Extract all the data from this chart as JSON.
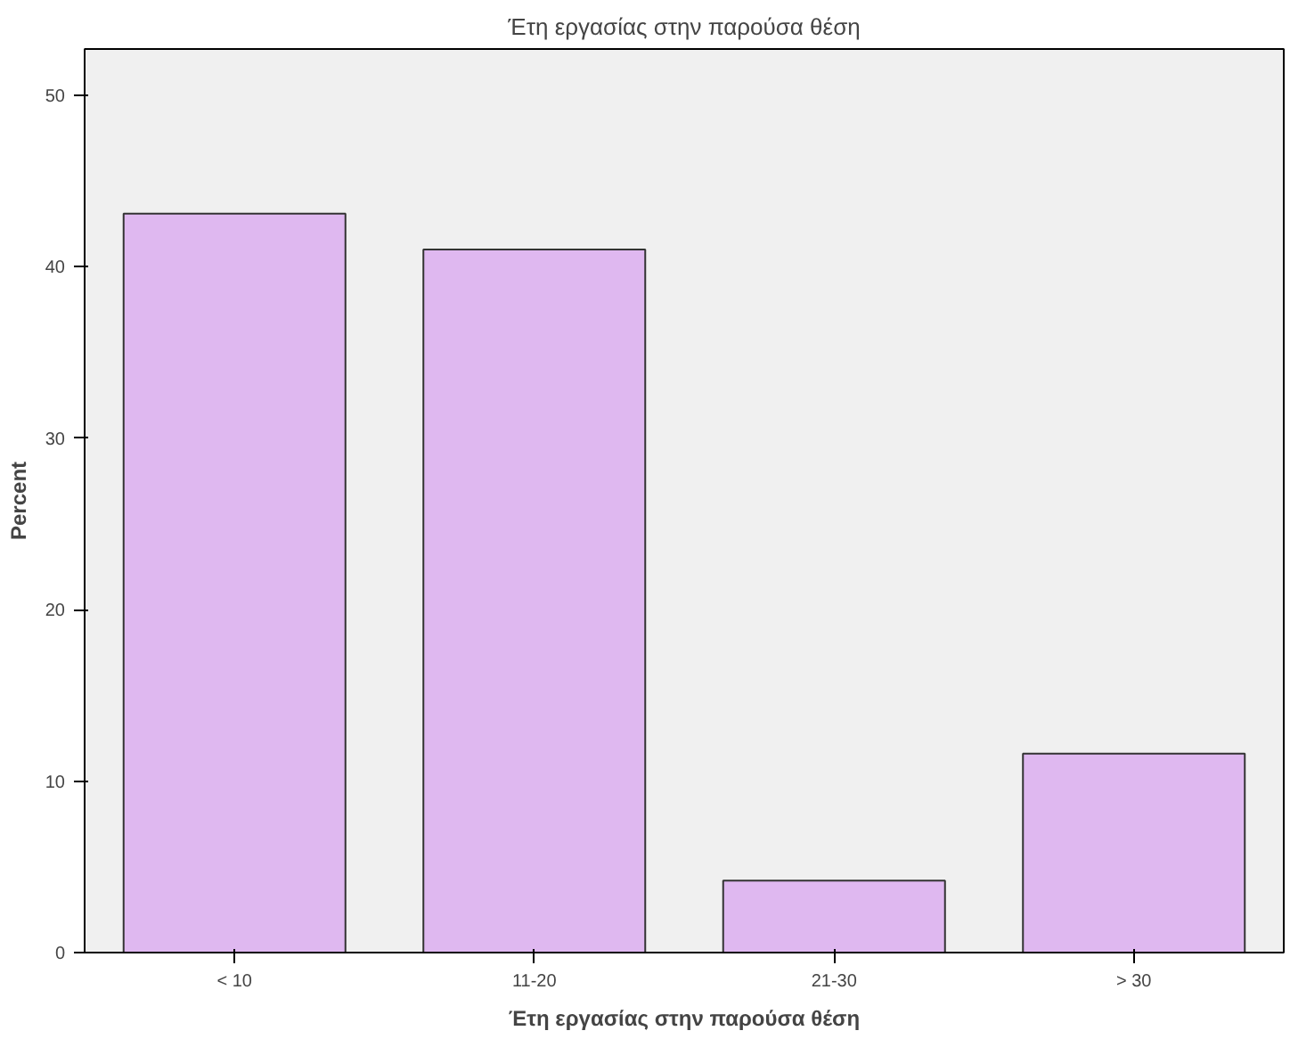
{
  "chart_data": {
    "type": "bar",
    "title": "Έτη εργασίας στην παρούσα θέση",
    "xlabel": "Έτη εργασίας στην παρούσα θέση",
    "ylabel": "Percent",
    "categories": [
      "< 10",
      "11-20",
      "21-30",
      "> 30"
    ],
    "values": [
      43.1,
      41.0,
      4.2,
      11.6
    ],
    "color": "#dfb8f0",
    "ylim": [
      0,
      52.7
    ],
    "yticks": [
      0,
      10,
      20,
      30,
      40,
      50
    ],
    "grid": false
  }
}
